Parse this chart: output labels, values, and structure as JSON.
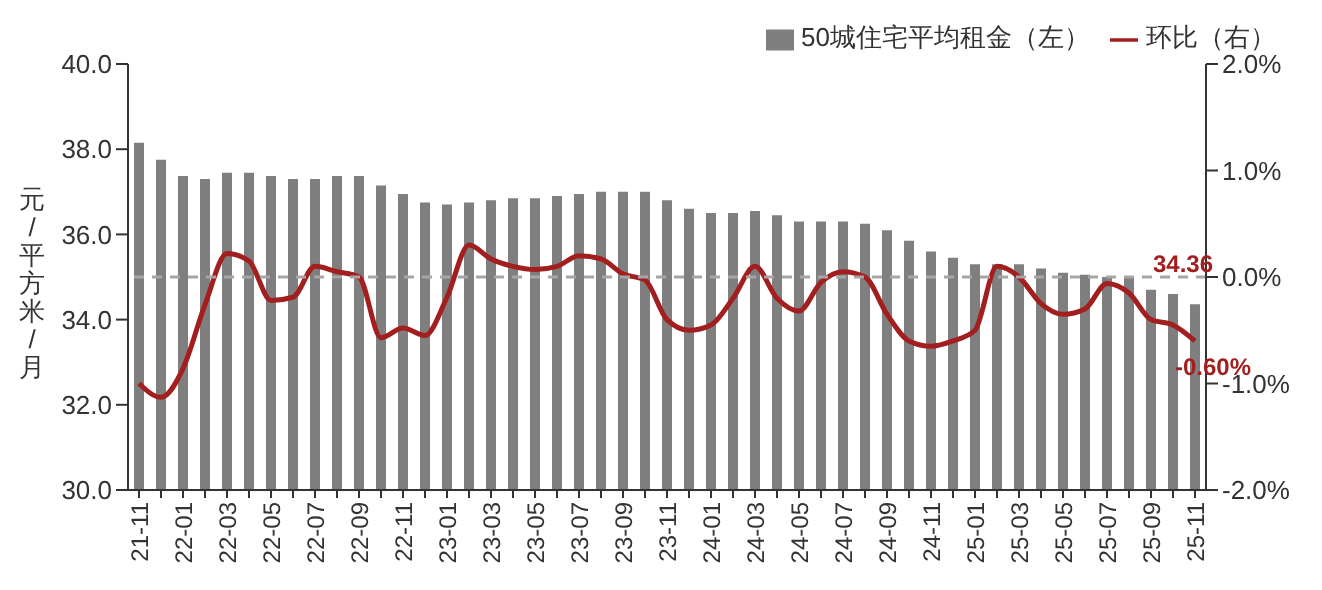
{
  "chart_data": {
    "type": "bar",
    "ylabel": "元/平方米/月",
    "categories": [
      "21-11",
      null,
      "22-01",
      null,
      "22-03",
      null,
      "22-05",
      null,
      "22-07",
      null,
      "22-09",
      null,
      "22-11",
      null,
      "23-01",
      null,
      "23-03",
      null,
      "23-05",
      null,
      "23-07",
      null,
      "23-09",
      null,
      "23-11",
      null,
      "24-01",
      null,
      "24-03",
      null,
      "24-05",
      null,
      "24-07",
      null,
      "24-09",
      null,
      "24-11",
      null,
      "25-01",
      null,
      "25-03",
      null,
      "25-05",
      null,
      "25-07",
      null,
      "25-09",
      null,
      "25-11"
    ],
    "series": [
      {
        "name": "50城住宅平均租金（左）",
        "color": "#7f7f7f",
        "values": [
          38.15,
          37.75,
          37.37,
          37.3,
          37.45,
          37.45,
          37.37,
          37.3,
          37.3,
          37.37,
          37.37,
          37.15,
          36.95,
          36.75,
          36.7,
          36.75,
          36.8,
          36.85,
          36.85,
          36.9,
          36.95,
          37.0,
          37.0,
          37.0,
          36.8,
          36.6,
          36.5,
          36.5,
          36.55,
          36.45,
          36.3,
          36.3,
          36.3,
          36.25,
          36.1,
          35.85,
          35.6,
          35.45,
          35.3,
          35.3,
          35.3,
          35.2,
          35.1,
          35.05,
          35.0,
          35.0,
          34.7,
          34.6,
          34.36
        ],
        "value_labels": [
          null,
          null,
          null,
          null,
          null,
          null,
          null,
          null,
          null,
          null,
          null,
          null,
          null,
          null,
          null,
          null,
          null,
          null,
          null,
          null,
          null,
          null,
          null,
          null,
          null,
          null,
          null,
          null,
          null,
          null,
          null,
          null,
          null,
          null,
          null,
          null,
          null,
          null,
          null,
          null,
          null,
          null,
          null,
          null,
          null,
          null,
          null,
          null,
          "34.36"
        ]
      },
      {
        "name": "环比（右）",
        "type": "line",
        "axis": "y2",
        "color": "#a31f1f",
        "values": [
          -1.0,
          -1.13,
          -0.86,
          -0.26,
          0.22,
          0.15,
          -0.22,
          -0.19,
          0.1,
          0.05,
          0.0,
          -0.57,
          -0.48,
          -0.55,
          -0.19,
          0.3,
          0.17,
          0.1,
          0.07,
          0.1,
          0.2,
          0.17,
          0.03,
          -0.03,
          -0.4,
          -0.5,
          -0.45,
          -0.2,
          0.1,
          -0.2,
          -0.32,
          -0.05,
          0.05,
          0.0,
          -0.35,
          -0.6,
          -0.65,
          -0.6,
          -0.5,
          0.1,
          0.0,
          -0.25,
          -0.35,
          -0.3,
          -0.06,
          -0.15,
          -0.4,
          -0.45,
          -0.6
        ],
        "value_labels": [
          null,
          null,
          null,
          null,
          null,
          null,
          null,
          null,
          null,
          null,
          null,
          null,
          null,
          null,
          null,
          null,
          null,
          null,
          null,
          null,
          null,
          null,
          null,
          null,
          null,
          null,
          null,
          null,
          null,
          null,
          null,
          null,
          null,
          null,
          null,
          null,
          null,
          null,
          null,
          null,
          null,
          null,
          null,
          null,
          null,
          null,
          null,
          null,
          "-0.60%"
        ]
      }
    ],
    "ylim": [
      30,
      40
    ],
    "yticks": [
      {
        "value": 30,
        "label": "30.0"
      },
      {
        "value": 32,
        "label": "32.0"
      },
      {
        "value": 34,
        "label": "34.0"
      },
      {
        "value": 36,
        "label": "36.0"
      },
      {
        "value": 38,
        "label": "38.0"
      },
      {
        "value": 40,
        "label": "40.0"
      }
    ],
    "y2lim": [
      -2,
      2
    ],
    "y2ticks": [
      {
        "value": -2,
        "label": "-2.0%"
      },
      {
        "value": -1,
        "label": "-1.0%"
      },
      {
        "value": 0,
        "label": "0.0%"
      },
      {
        "value": 1,
        "label": "1.0%"
      },
      {
        "value": 2,
        "label": "2.0%"
      }
    ],
    "ref_lines": [
      {
        "axis": "y2",
        "value": 0,
        "label": null,
        "color": "#a6a6a6",
        "line_style": "dashed"
      }
    ],
    "legend": "top right",
    "marker": "none",
    "line_style": "solid"
  }
}
